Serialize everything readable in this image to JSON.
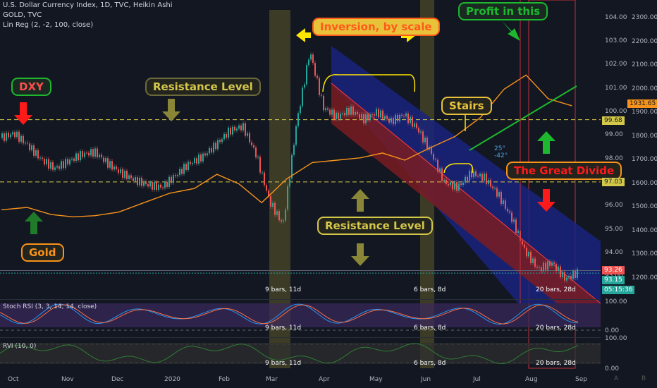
{
  "header": {
    "line1": "U.S. Dollar Currency Index, 1D, TVC, Heikin Ashi",
    "line2": "GOLD, TVC",
    "line3": "Lin Reg (2, -2, 100, close)"
  },
  "callouts": {
    "dxy": "DXY",
    "resistance_top": "Resistance Level",
    "inversion": "Inversion, by scale",
    "profit": "Profit in this",
    "stairs": "Stairs",
    "great_divide": "The Great Divide",
    "resistance_mid": "Resistance Level",
    "gold": "Gold"
  },
  "bars_labels": {
    "a": "9 bars, 11d",
    "b": "6 bars, 8d",
    "c": "20 bars, 28d"
  },
  "angles": {
    "a1": "25°",
    "a2": "-42°"
  },
  "price_tags": {
    "dxy_last": "93.15",
    "resist_upper": "99.68",
    "resist_lower": "97.03",
    "linreg": "93.26",
    "timer": "05:15:36",
    "gold_last": "1931.65"
  },
  "indicators": {
    "stoch": "Stoch RSI (3, 3, 14, 14, close)",
    "rvi": "RVI (10, 0)",
    "stoch_axis": [
      "100.00",
      "0.00"
    ],
    "rvi_axis": [
      "100.00",
      "0.00"
    ]
  },
  "bottom_icons": {
    "a": "A",
    "b": "B"
  },
  "colors": {
    "background": "#131722",
    "bull": "#26a69a",
    "bear": "#ef5350",
    "gold_line": "#f7931a",
    "resistance": "#d4c84a",
    "regression_upper": "#1a237e",
    "regression_lower": "#7a1c22",
    "green_arrow": "#1db82e",
    "red_arrow": "#ff1a1a",
    "highlight_band": "#5c5a2a"
  },
  "chart_data": {
    "type": "candlestick",
    "title": "U.S. Dollar Currency Index, 1D, TVC, Heikin Ashi",
    "x_axis": {
      "type": "date",
      "tick_labels": [
        "Oct",
        "Nov",
        "Dec",
        "2020",
        "Feb",
        "Mar",
        "Apr",
        "May",
        "Jun",
        "Jul",
        "Aug",
        "Sep"
      ]
    },
    "y_axis_dxy": {
      "range": [
        92,
        104.5
      ],
      "tick_labels": [
        "104.00",
        "103.00",
        "102.00",
        "101.00",
        "100.00",
        "99.00",
        "98.00",
        "97.00",
        "96.00",
        "95.00",
        "94.00",
        "93.00"
      ]
    },
    "y_axis_gold": {
      "range": [
        1100,
        2450
      ],
      "tick_labels": [
        "2300.00",
        "2200.00",
        "2100.00",
        "2000.00",
        "1900.00",
        "1800.00",
        "1700.00",
        "1600.00",
        "1500.00",
        "1400.00",
        "1300.00",
        "1200.00"
      ]
    },
    "series_dxy_close": [
      [
        "Oct",
        98.9
      ],
      [
        "Oct",
        99.1
      ],
      [
        "Oct",
        98.6
      ],
      [
        "Oct",
        98.0
      ],
      [
        "Nov",
        97.6
      ],
      [
        "Nov",
        97.9
      ],
      [
        "Nov",
        98.2
      ],
      [
        "Nov",
        98.3
      ],
      [
        "Dec",
        97.8
      ],
      [
        "Dec",
        97.4
      ],
      [
        "Dec",
        97.1
      ],
      [
        "Dec",
        96.9
      ],
      [
        "2020",
        96.8
      ],
      [
        "2020",
        97.3
      ],
      [
        "2020",
        97.8
      ],
      [
        "2020",
        98.1
      ],
      [
        "Feb",
        98.6
      ],
      [
        "Feb",
        99.2
      ],
      [
        "Feb",
        99.4
      ],
      [
        "Mar",
        98.2
      ],
      [
        "Mar",
        96.2
      ],
      [
        "Mar",
        95.2
      ],
      [
        "Mar",
        99.5
      ],
      [
        "Mar",
        102.6
      ],
      [
        "Apr",
        100.2
      ],
      [
        "Apr",
        99.8
      ],
      [
        "Apr",
        100.1
      ],
      [
        "Apr",
        99.7
      ],
      [
        "May",
        100.0
      ],
      [
        "May",
        99.6
      ],
      [
        "May",
        99.9
      ],
      [
        "May",
        99.3
      ],
      [
        "Jun",
        98.3
      ],
      [
        "Jun",
        97.0
      ],
      [
        "Jun",
        96.8
      ],
      [
        "Jun",
        97.4
      ],
      [
        "Jul",
        97.2
      ],
      [
        "Jul",
        96.5
      ],
      [
        "Jul",
        95.5
      ],
      [
        "Jul",
        94.1
      ],
      [
        "Aug",
        93.3
      ],
      [
        "Aug",
        93.6
      ],
      [
        "Aug",
        92.9
      ],
      [
        "Aug",
        93.2
      ]
    ],
    "series_gold": [
      [
        "Oct",
        1490
      ],
      [
        "Oct",
        1500
      ],
      [
        "Nov",
        1470
      ],
      [
        "Nov",
        1460
      ],
      [
        "Dec",
        1465
      ],
      [
        "Dec",
        1480
      ],
      [
        "2020",
        1520
      ],
      [
        "2020",
        1560
      ],
      [
        "Feb",
        1580
      ],
      [
        "Feb",
        1640
      ],
      [
        "Mar",
        1600
      ],
      [
        "Mar",
        1520
      ],
      [
        "Mar",
        1620
      ],
      [
        "Apr",
        1690
      ],
      [
        "Apr",
        1700
      ],
      [
        "May",
        1710
      ],
      [
        "May",
        1730
      ],
      [
        "Jun",
        1700
      ],
      [
        "Jun",
        1750
      ],
      [
        "Jul",
        1800
      ],
      [
        "Jul",
        1880
      ],
      [
        "Aug",
        2000
      ],
      [
        "Aug",
        2060
      ],
      [
        "Aug",
        1960
      ],
      [
        "Sep",
        1930
      ]
    ],
    "levels": {
      "resistance_upper": 99.68,
      "resistance_lower": 97.03,
      "dxy_last": 93.15,
      "linreg": 93.26,
      "gold_last": 1931.65
    },
    "grid": false,
    "legend": "top-left"
  }
}
